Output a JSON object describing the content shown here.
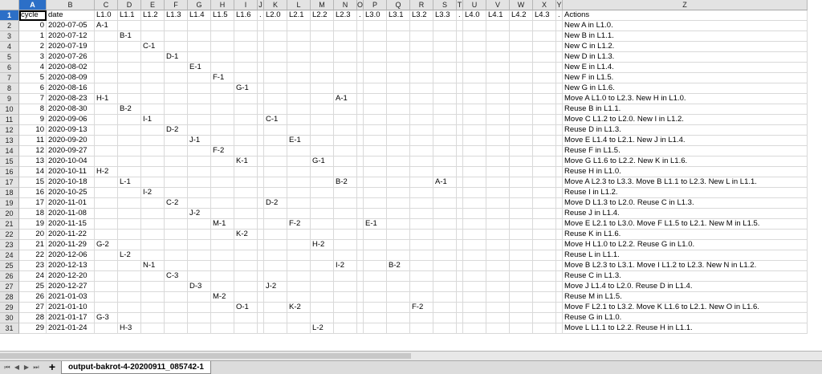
{
  "sheet": {
    "columns": [
      "A",
      "B",
      "C",
      "D",
      "E",
      "F",
      "G",
      "H",
      "I",
      "J",
      "K",
      "L",
      "M",
      "N",
      "O",
      "P",
      "Q",
      "R",
      "S",
      "T",
      "U",
      "V",
      "W",
      "X",
      "Y",
      "Z"
    ],
    "active_column": "A",
    "active_row": 1,
    "header": [
      "cycle",
      "date",
      "L1.0",
      "L1.1",
      "L1.2",
      "L1.3",
      "L1.4",
      "L1.5",
      "L1.6",
      ".",
      "L2.0",
      "L2.1",
      "L2.2",
      "L2.3",
      ".",
      "L3.0",
      "L3.1",
      "L3.2",
      "L3.3",
      ".",
      "L4.0",
      "L4.1",
      "L4.2",
      "L4.3",
      ".",
      "Actions"
    ],
    "rows": [
      {
        "n": 2,
        "cycle": "0",
        "date": "2020-07-05",
        "cells": {
          "C": "A-1"
        },
        "action": "New A in L1.0."
      },
      {
        "n": 3,
        "cycle": "1",
        "date": "2020-07-12",
        "cells": {
          "D": "B-1"
        },
        "action": "New B in L1.1."
      },
      {
        "n": 4,
        "cycle": "2",
        "date": "2020-07-19",
        "cells": {
          "E": "C-1"
        },
        "action": "New C in L1.2."
      },
      {
        "n": 5,
        "cycle": "3",
        "date": "2020-07-26",
        "cells": {
          "F": "D-1"
        },
        "action": "New D in L1.3."
      },
      {
        "n": 6,
        "cycle": "4",
        "date": "2020-08-02",
        "cells": {
          "G": "E-1"
        },
        "action": "New E in L1.4."
      },
      {
        "n": 7,
        "cycle": "5",
        "date": "2020-08-09",
        "cells": {
          "H": "F-1"
        },
        "action": "New F in L1.5."
      },
      {
        "n": 8,
        "cycle": "6",
        "date": "2020-08-16",
        "cells": {
          "I": "G-1"
        },
        "action": "New G in L1.6."
      },
      {
        "n": 9,
        "cycle": "7",
        "date": "2020-08-23",
        "cells": {
          "C": "H-1",
          "N": "A-1"
        },
        "action": "Move A L1.0 to L2.3. New H in L1.0."
      },
      {
        "n": 10,
        "cycle": "8",
        "date": "2020-08-30",
        "cells": {
          "D": "B-2"
        },
        "action": "Reuse B in L1.1."
      },
      {
        "n": 11,
        "cycle": "9",
        "date": "2020-09-06",
        "cells": {
          "E": "I-1",
          "K": "C-1"
        },
        "action": "Move C L1.2 to L2.0. New I in L1.2."
      },
      {
        "n": 12,
        "cycle": "10",
        "date": "2020-09-13",
        "cells": {
          "F": "D-2"
        },
        "action": "Reuse D in L1.3."
      },
      {
        "n": 13,
        "cycle": "11",
        "date": "2020-09-20",
        "cells": {
          "G": "J-1",
          "L": "E-1"
        },
        "action": "Move E L1.4 to L2.1. New J in L1.4."
      },
      {
        "n": 14,
        "cycle": "12",
        "date": "2020-09-27",
        "cells": {
          "H": "F-2"
        },
        "action": "Reuse F in L1.5."
      },
      {
        "n": 15,
        "cycle": "13",
        "date": "2020-10-04",
        "cells": {
          "I": "K-1",
          "M": "G-1"
        },
        "action": "Move G L1.6 to L2.2. New K in L1.6."
      },
      {
        "n": 16,
        "cycle": "14",
        "date": "2020-10-11",
        "cells": {
          "C": "H-2"
        },
        "action": "Reuse H in L1.0."
      },
      {
        "n": 17,
        "cycle": "15",
        "date": "2020-10-18",
        "cells": {
          "D": "L-1",
          "N": "B-2",
          "S": "A-1"
        },
        "action": "Move A L2.3 to L3.3. Move B L1.1 to L2.3. New L in L1.1."
      },
      {
        "n": 18,
        "cycle": "16",
        "date": "2020-10-25",
        "cells": {
          "E": "I-2"
        },
        "action": "Reuse I in L1.2."
      },
      {
        "n": 19,
        "cycle": "17",
        "date": "2020-11-01",
        "cells": {
          "F": "C-2",
          "K": "D-2"
        },
        "action": "Move D L1.3 to L2.0. Reuse C in L1.3."
      },
      {
        "n": 20,
        "cycle": "18",
        "date": "2020-11-08",
        "cells": {
          "G": "J-2"
        },
        "action": "Reuse J in L1.4."
      },
      {
        "n": 21,
        "cycle": "19",
        "date": "2020-11-15",
        "cells": {
          "H": "M-1",
          "L": "F-2",
          "P": "E-1"
        },
        "action": "Move E L2.1 to L3.0. Move F L1.5 to L2.1. New M in L1.5."
      },
      {
        "n": 22,
        "cycle": "20",
        "date": "2020-11-22",
        "cells": {
          "I": "K-2"
        },
        "action": "Reuse K in L1.6."
      },
      {
        "n": 23,
        "cycle": "21",
        "date": "2020-11-29",
        "cells": {
          "C": "G-2",
          "M": "H-2"
        },
        "action": "Move H L1.0 to L2.2. Reuse G in L1.0."
      },
      {
        "n": 24,
        "cycle": "22",
        "date": "2020-12-06",
        "cells": {
          "D": "L-2"
        },
        "action": "Reuse L in L1.1."
      },
      {
        "n": 25,
        "cycle": "23",
        "date": "2020-12-13",
        "cells": {
          "E": "N-1",
          "N": "I-2",
          "Q": "B-2"
        },
        "action": "Move B L2.3 to L3.1. Move I L1.2 to L2.3. New N in L1.2."
      },
      {
        "n": 26,
        "cycle": "24",
        "date": "2020-12-20",
        "cells": {
          "F": "C-3"
        },
        "action": "Reuse C in L1.3."
      },
      {
        "n": 27,
        "cycle": "25",
        "date": "2020-12-27",
        "cells": {
          "G": "D-3",
          "K": "J-2"
        },
        "action": "Move J L1.4 to L2.0. Reuse D in L1.4."
      },
      {
        "n": 28,
        "cycle": "26",
        "date": "2021-01-03",
        "cells": {
          "H": "M-2"
        },
        "action": "Reuse M in L1.5."
      },
      {
        "n": 29,
        "cycle": "27",
        "date": "2021-01-10",
        "cells": {
          "I": "O-1",
          "L": "K-2",
          "R": "F-2"
        },
        "action": "Move F L2.1 to L3.2. Move K L1.6 to L2.1. New O in L1.6."
      },
      {
        "n": 30,
        "cycle": "28",
        "date": "2021-01-17",
        "cells": {
          "C": "G-3"
        },
        "action": "Reuse G in L1.0."
      },
      {
        "n": 31,
        "cycle": "29",
        "date": "2021-01-24",
        "cells": {
          "D": "H-3",
          "M": "L-2"
        },
        "action": "Move L L1.1 to L2.2. Reuse H in L1.1."
      }
    ]
  },
  "tabs": {
    "nav_first": "⏮",
    "nav_prev": "◀",
    "nav_next": "▶",
    "nav_last": "⏭",
    "add": "+",
    "sheet_name": "output-bakrot-4-20200911_085742-1"
  },
  "colors": {
    "selection": "#2c6fc7",
    "header_bg": "#e3e3e3"
  }
}
